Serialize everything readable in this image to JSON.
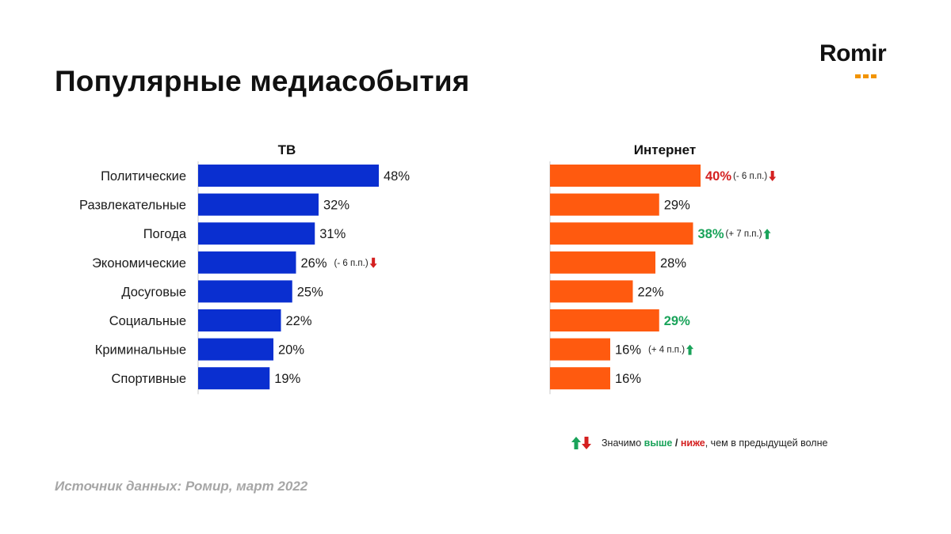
{
  "page": {
    "title": "Популярные медиасобытия",
    "logo": "Romir",
    "source": "Источник данных: Ромир, март 2022"
  },
  "legend": {
    "prefix": "Значимо",
    "higher": "выше",
    "separator": "/",
    "lower": "ниже",
    "suffix": ", чем в предыдущей волне"
  },
  "colors": {
    "tv_bar": "#0a2fd0",
    "internet_bar": "#ff5a0f",
    "increase": "#1aa35a",
    "decrease": "#d42020",
    "logo_dots": "#f29400"
  },
  "chart_data": {
    "type": "bar",
    "orientation": "horizontal",
    "categories": [
      "Политические",
      "Развлекательные",
      "Погода",
      "Экономические",
      "Досуговые",
      "Социальные",
      "Криминальные",
      "Спортивные"
    ],
    "series": [
      {
        "name": "ТВ",
        "values": [
          48,
          32,
          31,
          26,
          25,
          22,
          20,
          19
        ],
        "labels": [
          "48%",
          "32%",
          "31%",
          "26%",
          "25%",
          "22%",
          "20%",
          "19%"
        ],
        "value_styles": [
          "normal",
          "normal",
          "normal",
          "normal",
          "normal",
          "normal",
          "normal",
          "normal"
        ],
        "changes": [
          null,
          null,
          null,
          {
            "text": "(- 6 п.п.)",
            "dir": "down"
          },
          null,
          null,
          null,
          null
        ]
      },
      {
        "name": "Интернет",
        "values": [
          40,
          29,
          38,
          28,
          22,
          29,
          16,
          16
        ],
        "labels": [
          "40%",
          "29%",
          "38%",
          "28%",
          "22%",
          "29%",
          "16%",
          "16%"
        ],
        "value_styles": [
          "down",
          "normal",
          "up",
          "normal",
          "normal",
          "up",
          "normal",
          "normal"
        ],
        "changes": [
          {
            "text": "(- 6 п.п.)",
            "dir": "down"
          },
          null,
          {
            "text": "(+ 7 п.п.)",
            "dir": "up"
          },
          null,
          null,
          null,
          {
            "text": "(+ 4 п.п.)",
            "dir": "up"
          },
          null
        ]
      }
    ],
    "xlim": [
      0,
      100
    ],
    "unit": "%"
  }
}
